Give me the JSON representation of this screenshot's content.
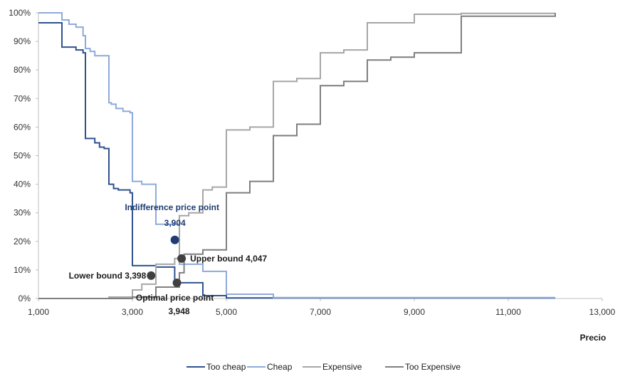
{
  "chart_data": {
    "type": "line",
    "xlabel": "Precio",
    "ylabel": "",
    "xlim": [
      1000,
      13000
    ],
    "ylim": [
      0,
      100
    ],
    "xticks": [
      1000,
      3000,
      5000,
      7000,
      9000,
      11000,
      13000
    ],
    "x_tick_labels": [
      "1,000",
      "3,000",
      "5,000",
      "7,000",
      "9,000",
      "11,000",
      "13,000"
    ],
    "yticks": [
      0,
      10,
      20,
      30,
      40,
      50,
      60,
      70,
      80,
      90,
      100
    ],
    "y_tick_labels": [
      "0%",
      "10%",
      "20%",
      "30%",
      "40%",
      "50%",
      "60%",
      "70%",
      "80%",
      "90%",
      "100%"
    ],
    "grid": false,
    "legend_position": "bottom",
    "series": [
      {
        "name": "Too cheap",
        "color": "#2f528f",
        "x": [
          1000,
          1500,
          1500,
          1800,
          1800,
          1950,
          1950,
          2000,
          2000,
          2200,
          2200,
          2300,
          2300,
          2400,
          2400,
          2500,
          2500,
          2600,
          2600,
          2700,
          2700,
          2950,
          2950,
          3000,
          3000,
          3500,
          3500,
          3900,
          3900,
          4000,
          4000,
          4500,
          4500,
          5000,
          5000,
          12000
        ],
        "values": [
          96.5,
          96.5,
          88,
          88,
          87,
          87,
          86,
          86,
          56,
          56,
          54.5,
          54.5,
          53,
          53,
          52.5,
          52.5,
          40,
          40,
          38.5,
          38.5,
          38,
          38,
          37,
          37,
          11.5,
          11.5,
          11,
          11,
          6,
          6,
          5.5,
          5.5,
          1,
          1,
          0.2,
          0.2
        ]
      },
      {
        "name": "Cheap",
        "color": "#8eaadb",
        "x": [
          1000,
          1500,
          1500,
          1650,
          1650,
          1800,
          1800,
          1950,
          1950,
          2000,
          2000,
          2100,
          2100,
          2200,
          2200,
          2500,
          2500,
          2550,
          2550,
          2650,
          2650,
          2800,
          2800,
          2950,
          2950,
          3000,
          3000,
          3200,
          3200,
          3500,
          3500,
          3500,
          3500,
          4000,
          4000,
          4500,
          4500,
          5000,
          5000,
          6000,
          6000,
          12000
        ],
        "values": [
          100,
          100,
          97.5,
          97.5,
          96,
          96,
          95,
          95,
          92,
          92,
          87.5,
          87.5,
          86.5,
          86.5,
          85,
          85,
          68.5,
          68.5,
          68,
          68,
          66.5,
          66.5,
          65.5,
          65.5,
          65,
          65,
          41,
          41,
          40,
          40,
          39,
          39,
          26,
          26,
          12,
          12,
          9.5,
          9.5,
          1.5,
          1.5,
          0.3,
          0.3
        ]
      },
      {
        "name": "Expensive",
        "color": "#a6a6a6",
        "x": [
          1000,
          2500,
          2500,
          3000,
          3000,
          3200,
          3200,
          3500,
          3500,
          3900,
          3900,
          4000,
          4000,
          4200,
          4200,
          4500,
          4500,
          4700,
          4700,
          5000,
          5000,
          5500,
          5500,
          6000,
          6000,
          6500,
          6500,
          7000,
          7000,
          7500,
          7500,
          8000,
          8000,
          9000,
          9000,
          10000,
          10000,
          12000
        ],
        "values": [
          0,
          0,
          0.5,
          0.5,
          3,
          3,
          5,
          5,
          12,
          12,
          14,
          14,
          29,
          29,
          30,
          30,
          38,
          38,
          39,
          39,
          59,
          59,
          60,
          60,
          76,
          76,
          77,
          77,
          86,
          86,
          87,
          87,
          96.5,
          96.5,
          99.5,
          99.5,
          99.8,
          99.8
        ]
      },
      {
        "name": "Too Expensive",
        "color": "#7f7f7f",
        "x": [
          1000,
          3000,
          3000,
          3500,
          3500,
          4000,
          4000,
          4100,
          4100,
          4500,
          4500,
          5000,
          5000,
          5500,
          5500,
          6000,
          6000,
          6500,
          6500,
          7000,
          7000,
          7500,
          7500,
          8000,
          8000,
          8500,
          8500,
          9000,
          9000,
          10000,
          10000,
          12000,
          12000
        ],
        "values": [
          0,
          0,
          0.5,
          0.5,
          4,
          4,
          9,
          9,
          15.5,
          15.5,
          17,
          17,
          37,
          37,
          41,
          41,
          57,
          57,
          61,
          61,
          74.5,
          74.5,
          76,
          76,
          83.5,
          83.5,
          84.5,
          84.5,
          86,
          86,
          98.8,
          98.8,
          100
        ]
      }
    ],
    "annotations": [
      {
        "label": "Indifference price point",
        "value": "3,904",
        "x": 3904,
        "y": 20.5,
        "color": "#1f3c73"
      },
      {
        "label": "Upper bound 4,047",
        "x": 4047,
        "y": 14,
        "color": "#404040"
      },
      {
        "label": "Lower bound 3,398",
        "x": 3398,
        "y": 8,
        "color": "#404040"
      },
      {
        "label": "Optimal price point",
        "value": "3,948",
        "x": 3948,
        "y": 5.5,
        "color": "#404040"
      }
    ]
  }
}
